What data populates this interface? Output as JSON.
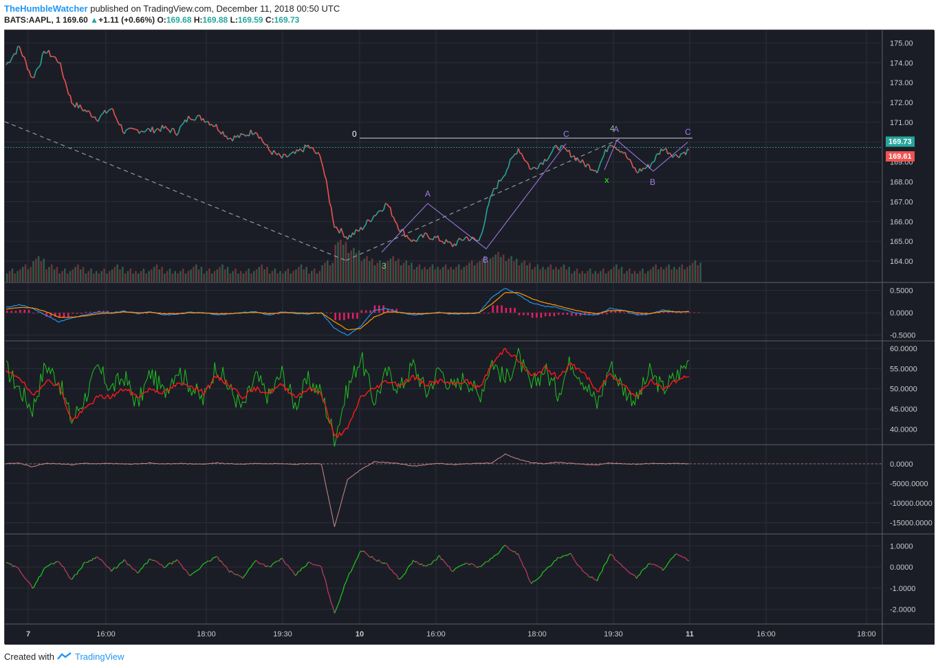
{
  "header": {
    "author": "TheHumbleWatcher",
    "published_text": "published on TradingView.com, December 11, 2018 00:50 UTC",
    "symbol": "BATS:AAPL, 1",
    "last": "169.60",
    "change": "+1.11 (+0.66%)",
    "o_label": "O:",
    "o_value": "169.68",
    "h_label": "H:",
    "h_value": "169.88",
    "l_label": "L:",
    "l_value": "169.59",
    "c_label": "C:",
    "c_value": "169.73"
  },
  "footer": {
    "created_with": "Created with",
    "brand": "TradingView"
  },
  "colors": {
    "up": "#26a69a",
    "down": "#ef5350",
    "background": "#1b1d26",
    "grid": "#2b2e39",
    "wave": "#a77cf2",
    "macd_fast": "#2196f3",
    "macd_slow": "#ff9800",
    "histogram": "#e91e63",
    "rsi_fast": "#1ec41e",
    "rsi_slow": "#ff1a1a"
  },
  "price_tags": [
    {
      "value": "169.73",
      "color": "#26a69a"
    },
    {
      "value": "169.61",
      "color": "#ef5350"
    }
  ],
  "chart_data": [
    {
      "type": "line",
      "panel": "price",
      "x_ticks": [
        "7",
        "16:00",
        "18:00",
        "19:30",
        "10",
        "16:00",
        "18:00",
        "19:30",
        "11",
        "16:00",
        "18:00"
      ],
      "y_ticks": [
        "175.00",
        "174.00",
        "173.00",
        "172.00",
        "171.00",
        "170.00",
        "169.00",
        "168.00",
        "167.00",
        "166.00",
        "165.00",
        "164.00"
      ],
      "ylim": [
        163.1,
        175.5
      ],
      "series": [
        {
          "values": [
            173.9,
            174.8,
            173.2,
            174.6,
            174.1,
            172.0,
            171.6,
            171.2,
            171.7,
            170.5,
            170.6,
            170.6,
            170.7,
            170.5,
            171.3,
            171.2,
            170.8,
            170.2,
            170.3,
            170.6,
            169.6,
            169.2,
            169.4,
            169.8,
            169.2,
            165.8,
            165.2,
            165.6,
            166.3,
            166.9,
            165.6,
            165.0,
            165.3,
            165.1,
            164.8,
            165.2,
            165.0,
            167.4,
            168.5,
            169.7,
            168.6,
            169.1,
            169.8,
            169.4,
            168.9,
            168.6,
            170.0,
            169.5,
            168.5,
            168.8,
            169.7,
            169.3,
            169.6
          ]
        }
      ],
      "annotations": [
        "0",
        "A",
        "B",
        "C",
        "3",
        "4",
        "A",
        "B",
        "C",
        "x"
      ]
    },
    {
      "type": "bar",
      "panel": "volume",
      "values": [
        2,
        3,
        5,
        3,
        2,
        3,
        2,
        2,
        3,
        2,
        2,
        3,
        2,
        2,
        3,
        2,
        3,
        2,
        2,
        3,
        2,
        2,
        3,
        2,
        4,
        9,
        7,
        5,
        4,
        5,
        4,
        3,
        3,
        3,
        3,
        4,
        5,
        6,
        5,
        4,
        3,
        3,
        3,
        2,
        2,
        2,
        3,
        2,
        2,
        3,
        3,
        3,
        4
      ]
    },
    {
      "type": "line",
      "panel": "macd",
      "y_ticks": [
        "0.5000",
        "0.0000",
        "-0.5000"
      ],
      "ylim": [
        -0.55,
        0.6
      ],
      "series": [
        {
          "values": [
            0.12,
            0.18,
            0.1,
            -0.05,
            -0.2,
            -0.12,
            -0.05,
            0.02,
            0.0,
            0.04,
            -0.02,
            0.02,
            -0.05,
            -0.03,
            0.01,
            0.0,
            -0.04,
            -0.03,
            0.01,
            0.02,
            -0.05,
            0.02,
            -0.01,
            -0.03,
            0.0,
            -0.35,
            -0.5,
            -0.3,
            0.05,
            0.1,
            0.0,
            -0.05,
            -0.02,
            0.01,
            -0.03,
            -0.02,
            0.0,
            0.35,
            0.55,
            0.4,
            0.22,
            0.15,
            0.12,
            0.02,
            -0.03,
            -0.05,
            0.1,
            0.05,
            -0.05,
            -0.03,
            0.06,
            0.02,
            0.03
          ]
        },
        {
          "values": [
            0.08,
            0.12,
            0.11,
            0.03,
            -0.1,
            -0.1,
            -0.07,
            -0.02,
            -0.01,
            0.02,
            0.0,
            0.01,
            -0.02,
            -0.02,
            0.0,
            0.0,
            -0.02,
            -0.02,
            0.0,
            0.01,
            -0.02,
            0.0,
            0.0,
            -0.01,
            0.0,
            -0.2,
            -0.38,
            -0.35,
            -0.1,
            0.02,
            0.01,
            -0.02,
            -0.02,
            0.0,
            -0.01,
            -0.01,
            0.0,
            0.2,
            0.45,
            0.45,
            0.32,
            0.22,
            0.16,
            0.08,
            0.02,
            -0.02,
            0.05,
            0.05,
            0.0,
            -0.02,
            0.03,
            0.02,
            0.02
          ]
        }
      ]
    },
    {
      "type": "line",
      "panel": "rsi",
      "y_ticks": [
        "60.0000",
        "55.0000",
        "50.0000",
        "45.0000",
        "40.0000"
      ],
      "ylim": [
        37,
        61
      ],
      "series": [
        {
          "values": [
            55,
            50,
            45,
            56,
            52,
            42,
            48,
            55,
            50,
            53,
            46,
            54,
            49,
            55,
            51,
            47,
            56,
            50,
            45,
            53,
            48,
            54,
            46,
            52,
            49,
            38,
            50,
            58,
            47,
            54,
            50,
            56,
            49,
            55,
            50,
            53,
            48,
            57,
            52,
            58,
            50,
            55,
            49,
            57,
            52,
            46,
            56,
            50,
            47,
            54,
            50,
            53,
            57
          ]
        },
        {
          "values": [
            54,
            53,
            48,
            52,
            51,
            42,
            45,
            48,
            48,
            50,
            48,
            50,
            49,
            51,
            51,
            49,
            53,
            51,
            48,
            50,
            49,
            51,
            48,
            50,
            49,
            38,
            40,
            48,
            50,
            52,
            51,
            53,
            51,
            52,
            51,
            52,
            50,
            56,
            60,
            57,
            53,
            55,
            53,
            56,
            54,
            49,
            54,
            51,
            48,
            52,
            50,
            52,
            53
          ]
        }
      ]
    },
    {
      "type": "line",
      "panel": "oscillator",
      "y_ticks": [
        "0.0000",
        "-5000.0000",
        "-10000.0000",
        "-15000.0000"
      ],
      "ylim": [
        -17000,
        4000
      ],
      "series": [
        {
          "values": [
            0,
            200,
            -800,
            100,
            0,
            -200,
            100,
            0,
            100,
            -100,
            0,
            200,
            -100,
            100,
            0,
            -100,
            200,
            0,
            -100,
            100,
            0,
            100,
            -100,
            50,
            0,
            -16000,
            -4000,
            -1500,
            500,
            300,
            0,
            -600,
            -200,
            100,
            -200,
            0,
            100,
            200,
            2500,
            1200,
            300,
            0,
            400,
            100,
            -100,
            -300,
            200,
            0,
            -100,
            100,
            0,
            100,
            0
          ]
        }
      ]
    },
    {
      "type": "line",
      "panel": "momentum",
      "y_ticks": [
        "1.0000",
        "0.0000",
        "-1.0000",
        "-2.0000"
      ],
      "ylim": [
        -2.5,
        1.4
      ],
      "series": [
        {
          "values": [
            0.2,
            -0.1,
            -1.0,
            0.0,
            0.3,
            -0.6,
            0.2,
            0.5,
            -0.2,
            0.3,
            -0.3,
            0.4,
            0.0,
            0.3,
            -0.4,
            0.1,
            0.5,
            -0.2,
            -0.5,
            0.3,
            0.0,
            0.4,
            -0.4,
            0.2,
            0.0,
            -2.2,
            -0.5,
            0.8,
            0.4,
            0.1,
            -0.6,
            0.3,
            0.0,
            0.5,
            -0.2,
            0.2,
            0.0,
            0.4,
            1.0,
            0.6,
            -0.8,
            -0.2,
            0.4,
            0.6,
            -0.3,
            -0.6,
            0.6,
            0.0,
            -0.5,
            0.2,
            -0.1,
            0.6,
            0.3
          ]
        }
      ]
    }
  ]
}
